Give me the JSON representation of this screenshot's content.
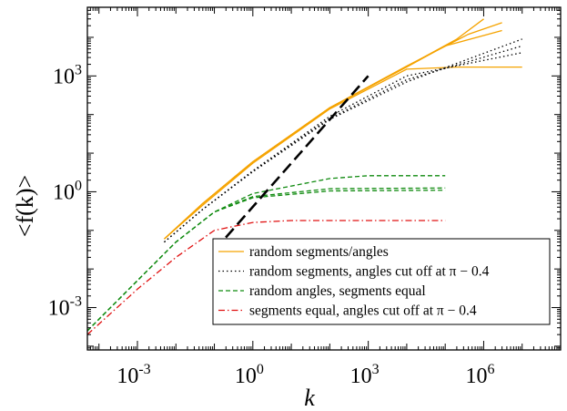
{
  "chart_data": {
    "type": "line",
    "title": "",
    "xlabel": "k",
    "ylabel": "<f(k)>",
    "x_scale": "log",
    "y_scale": "log",
    "xlim": [
      5e-05,
      100000000.0
    ],
    "ylim": [
      8e-05,
      60000
    ],
    "x_ticks": [
      {
        "value": 0.001,
        "base": "10",
        "exp": "-3"
      },
      {
        "value": 1,
        "base": "10",
        "exp": "0"
      },
      {
        "value": 1000,
        "base": "10",
        "exp": "3"
      },
      {
        "value": 1000000,
        "base": "10",
        "exp": "6"
      }
    ],
    "y_ticks": [
      {
        "value": 0.001,
        "base": "10",
        "exp": "-3"
      },
      {
        "value": 1,
        "base": "10",
        "exp": "0"
      },
      {
        "value": 1000,
        "base": "10",
        "exp": "3"
      }
    ],
    "legend_position": "bottom-right",
    "series": [
      {
        "name": "random segments/angles",
        "color": "#f5a300",
        "dash": "solid",
        "lines": [
          [
            [
              0.005,
              0.06
            ],
            [
              0.05,
              0.5
            ],
            [
              1,
              6
            ],
            [
              100,
              150
            ],
            [
              10000,
              1700
            ],
            [
              100000,
              6000
            ],
            [
              3000000,
              15000
            ]
          ],
          [
            [
              0.005,
              0.06
            ],
            [
              0.05,
              0.5
            ],
            [
              1,
              6
            ],
            [
              100,
              150
            ],
            [
              10000,
              1800
            ],
            [
              400000,
              12000
            ],
            [
              3000000,
              24000
            ]
          ],
          [
            [
              0.005,
              0.06
            ],
            [
              0.05,
              0.5
            ],
            [
              1,
              6
            ],
            [
              100,
              150
            ],
            [
              10000,
              1750
            ],
            [
              200000,
              9000
            ],
            [
              1000000,
              30000
            ]
          ],
          [
            [
              0.005,
              0.06
            ],
            [
              0.05,
              0.45
            ],
            [
              1,
              5.5
            ],
            [
              100,
              140
            ],
            [
              10000,
              1500
            ],
            [
              200000,
              1700
            ],
            [
              10000000,
              1700
            ]
          ]
        ]
      },
      {
        "name": "random segments, angles cut off at π − 0.4",
        "color": "#000000",
        "dash": "dot",
        "lines": [
          [
            [
              0.005,
              0.05
            ],
            [
              0.05,
              0.35
            ],
            [
              1,
              3.5
            ],
            [
              100,
              90
            ],
            [
              10000,
              1000
            ],
            [
              10000000,
              4000
            ]
          ],
          [
            [
              0.005,
              0.05
            ],
            [
              0.05,
              0.35
            ],
            [
              1,
              3.4
            ],
            [
              100,
              80
            ],
            [
              10000,
              800
            ],
            [
              10000000,
              6000
            ]
          ],
          [
            [
              0.005,
              0.05
            ],
            [
              0.05,
              0.35
            ],
            [
              1,
              3.3
            ],
            [
              100,
              75
            ],
            [
              10000,
              700
            ],
            [
              10000000,
              9000
            ]
          ]
        ]
      },
      {
        "name": "random angles, segments equal",
        "color": "#0f8a0f",
        "dash": "dash",
        "lines": [
          [
            [
              5e-05,
              0.00025
            ],
            [
              0.001,
              0.005
            ],
            [
              0.01,
              0.05
            ],
            [
              0.1,
              0.3
            ],
            [
              1,
              0.9
            ],
            [
              100,
              2.2
            ],
            [
              1000,
              2.6
            ],
            [
              100000,
              2.6
            ]
          ],
          [
            [
              5e-05,
              0.00025
            ],
            [
              0.001,
              0.005
            ],
            [
              0.01,
              0.05
            ],
            [
              0.1,
              0.3
            ],
            [
              1,
              0.75
            ],
            [
              100,
              1.2
            ],
            [
              100000,
              1.25
            ]
          ],
          [
            [
              5e-05,
              0.00025
            ],
            [
              0.001,
              0.005
            ],
            [
              0.01,
              0.05
            ],
            [
              0.1,
              0.3
            ],
            [
              1,
              0.7
            ],
            [
              100,
              1.05
            ],
            [
              100000,
              1.1
            ]
          ]
        ]
      },
      {
        "name": "segments equal, angles cut off at π − 0.4",
        "color": "#e01010",
        "dash": "dashdot",
        "lines": [
          [
            [
              5e-05,
              0.0002
            ],
            [
              0.001,
              0.003
            ],
            [
              0.01,
              0.02
            ],
            [
              0.1,
              0.1
            ],
            [
              1,
              0.16
            ],
            [
              10,
              0.18
            ],
            [
              100000,
              0.18
            ]
          ]
        ]
      },
      {
        "name": "",
        "color": "#000000",
        "dash": "longdash",
        "lines": [
          [
            [
              0.1,
              0.03
            ],
            [
              1000,
              1000
            ]
          ]
        ]
      }
    ]
  }
}
